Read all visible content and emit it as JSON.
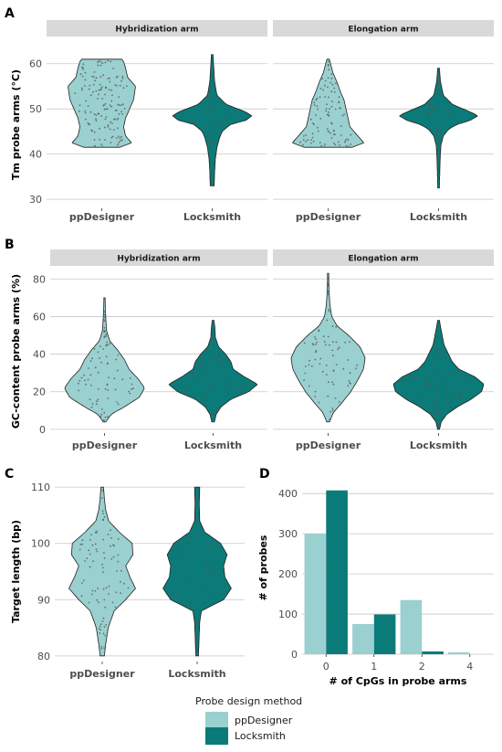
{
  "colors": {
    "ppDesigner": "#9ad0cf",
    "Locksmith": "#0a7b78",
    "strip_bg": "#d9d9d9",
    "grid": "#c7c7c7",
    "dots": "#555555"
  },
  "legend": {
    "title": "Probe design method",
    "items": [
      "ppDesigner",
      "Locksmith"
    ]
  },
  "chart_data": [
    {
      "panel": "A",
      "type": "violin",
      "ylabel": "Tm probe arms (°C)",
      "ylim": [
        28,
        65
      ],
      "yticks": [
        30,
        40,
        50,
        60
      ],
      "facets": [
        {
          "strip": "Hybridization arm",
          "categories": [
            "ppDesigner",
            "Locksmith"
          ],
          "series": [
            {
              "name": "ppDesigner",
              "y_range": [
                41.5,
                61
              ],
              "median": 50,
              "profile": [
                [
                  41.5,
                  0.45
                ],
                [
                  42.5,
                  0.75
                ],
                [
                  44,
                  0.6
                ],
                [
                  46,
                  0.55
                ],
                [
                  48,
                  0.6
                ],
                [
                  50,
                  0.7
                ],
                [
                  52,
                  0.8
                ],
                [
                  55,
                  0.85
                ],
                [
                  57,
                  0.65
                ],
                [
                  59,
                  0.6
                ],
                [
                  60.5,
                  0.55
                ],
                [
                  61,
                  0.5
                ]
              ]
            },
            {
              "name": "Locksmith",
              "y_range": [
                33,
                62
              ],
              "median": 48.5,
              "profile": [
                [
                  33,
                  0.05
                ],
                [
                  36,
                  0.06
                ],
                [
                  39,
                  0.08
                ],
                [
                  41.5,
                  0.12
                ],
                [
                  43.5,
                  0.18
                ],
                [
                  45,
                  0.25
                ],
                [
                  46.5,
                  0.45
                ],
                [
                  47.5,
                  0.85
                ],
                [
                  48.5,
                  1.0
                ],
                [
                  49.5,
                  0.8
                ],
                [
                  51,
                  0.35
                ],
                [
                  53,
                  0.12
                ],
                [
                  56,
                  0.06
                ],
                [
                  59,
                  0.04
                ],
                [
                  62,
                  0.02
                ]
              ]
            }
          ]
        },
        {
          "strip": "Elongation arm",
          "categories": [
            "ppDesigner",
            "Locksmith"
          ],
          "series": [
            {
              "name": "ppDesigner",
              "y_range": [
                41.5,
                61
              ],
              "median": 46,
              "profile": [
                [
                  41.5,
                  0.6
                ],
                [
                  42.5,
                  0.9
                ],
                [
                  44,
                  0.75
                ],
                [
                  46,
                  0.55
                ],
                [
                  48,
                  0.5
                ],
                [
                  50,
                  0.45
                ],
                [
                  52,
                  0.4
                ],
                [
                  54,
                  0.3
                ],
                [
                  56,
                  0.22
                ],
                [
                  58,
                  0.12
                ],
                [
                  60,
                  0.06
                ],
                [
                  61,
                  0.03
                ]
              ]
            },
            {
              "name": "Locksmith",
              "y_range": [
                32.5,
                59
              ],
              "median": 48.5,
              "profile": [
                [
                  32.5,
                  0.02
                ],
                [
                  36,
                  0.03
                ],
                [
                  39,
                  0.04
                ],
                [
                  42,
                  0.06
                ],
                [
                  44,
                  0.12
                ],
                [
                  45.5,
                  0.25
                ],
                [
                  46.5,
                  0.45
                ],
                [
                  47.5,
                  0.8
                ],
                [
                  48.5,
                  1.0
                ],
                [
                  49.5,
                  0.75
                ],
                [
                  51,
                  0.35
                ],
                [
                  53,
                  0.12
                ],
                [
                  56,
                  0.05
                ],
                [
                  59,
                  0.02
                ]
              ]
            }
          ]
        }
      ]
    },
    {
      "panel": "B",
      "type": "violin",
      "ylabel": "GC-content probe arms (%)",
      "ylim": [
        -2,
        85
      ],
      "yticks": [
        0,
        20,
        40,
        60,
        80
      ],
      "facets": [
        {
          "strip": "Hybridization arm",
          "categories": [
            "ppDesigner",
            "Locksmith"
          ],
          "series": [
            {
              "name": "ppDesigner",
              "y_range": [
                4,
                70
              ],
              "median": 24,
              "profile": [
                [
                  4,
                  0.03
                ],
                [
                  8,
                  0.15
                ],
                [
                  12,
                  0.45
                ],
                [
                  17,
                  0.78
                ],
                [
                  22,
                  0.9
                ],
                [
                  27,
                  0.75
                ],
                [
                  32,
                  0.55
                ],
                [
                  37,
                  0.45
                ],
                [
                  42,
                  0.3
                ],
                [
                  47,
                  0.12
                ],
                [
                  52,
                  0.05
                ],
                [
                  58,
                  0.03
                ],
                [
                  64,
                  0.02
                ],
                [
                  70,
                  0.01
                ]
              ]
            },
            {
              "name": "Locksmith",
              "y_range": [
                4,
                58
              ],
              "median": 24,
              "profile": [
                [
                  4,
                  0.03
                ],
                [
                  8,
                  0.07
                ],
                [
                  12,
                  0.18
                ],
                [
                  16,
                  0.4
                ],
                [
                  20,
                  0.8
                ],
                [
                  24,
                  1.0
                ],
                [
                  28,
                  0.7
                ],
                [
                  32,
                  0.45
                ],
                [
                  36,
                  0.4
                ],
                [
                  40,
                  0.28
                ],
                [
                  44,
                  0.12
                ],
                [
                  49,
                  0.05
                ],
                [
                  54,
                  0.04
                ],
                [
                  58,
                  0.02
                ]
              ]
            }
          ]
        },
        {
          "strip": "Elongation arm",
          "categories": [
            "ppDesigner",
            "Locksmith"
          ],
          "series": [
            {
              "name": "ppDesigner",
              "y_range": [
                4,
                83
              ],
              "median": 33,
              "profile": [
                [
                  4,
                  0.03
                ],
                [
                  9,
                  0.12
                ],
                [
                  14,
                  0.3
                ],
                [
                  20,
                  0.5
                ],
                [
                  26,
                  0.65
                ],
                [
                  32,
                  0.78
                ],
                [
                  38,
                  0.82
                ],
                [
                  44,
                  0.7
                ],
                [
                  50,
                  0.45
                ],
                [
                  55,
                  0.2
                ],
                [
                  60,
                  0.08
                ],
                [
                  66,
                  0.04
                ],
                [
                  74,
                  0.02
                ],
                [
                  83,
                  0.01
                ]
              ]
            },
            {
              "name": "Locksmith",
              "y_range": [
                0,
                58
              ],
              "median": 23,
              "profile": [
                [
                  0,
                  0.02
                ],
                [
                  4,
                  0.06
                ],
                [
                  8,
                  0.18
                ],
                [
                  12,
                  0.42
                ],
                [
                  16,
                  0.72
                ],
                [
                  20,
                  0.95
                ],
                [
                  24,
                  1.0
                ],
                [
                  28,
                  0.8
                ],
                [
                  32,
                  0.45
                ],
                [
                  36,
                  0.3
                ],
                [
                  40,
                  0.22
                ],
                [
                  45,
                  0.12
                ],
                [
                  50,
                  0.08
                ],
                [
                  55,
                  0.04
                ],
                [
                  58,
                  0.02
                ]
              ]
            }
          ]
        }
      ]
    },
    {
      "panel": "C",
      "type": "violin",
      "ylabel": "Target length (bp)",
      "ylim": [
        79,
        111
      ],
      "yticks": [
        80,
        90,
        100,
        110
      ],
      "facets": [
        {
          "strip": "",
          "categories": [
            "ppDesigner",
            "Locksmith"
          ],
          "series": [
            {
              "name": "ppDesigner",
              "y_range": [
                80,
                110
              ],
              "median": 94,
              "profile": [
                [
                  80,
                  0.05
                ],
                [
                  82,
                  0.08
                ],
                [
                  85,
                  0.14
                ],
                [
                  88,
                  0.28
                ],
                [
                  90,
                  0.55
                ],
                [
                  92,
                  0.78
                ],
                [
                  94,
                  0.65
                ],
                [
                  96,
                  0.55
                ],
                [
                  98,
                  0.72
                ],
                [
                  100,
                  0.7
                ],
                [
                  102,
                  0.4
                ],
                [
                  104,
                  0.15
                ],
                [
                  106,
                  0.08
                ],
                [
                  108,
                  0.05
                ],
                [
                  110,
                  0.03
                ]
              ]
            },
            {
              "name": "Locksmith",
              "y_range": [
                80,
                110
              ],
              "median": 93,
              "profile": [
                [
                  80,
                  0.03
                ],
                [
                  82,
                  0.04
                ],
                [
                  84,
                  0.05
                ],
                [
                  86,
                  0.06
                ],
                [
                  88,
                  0.1
                ],
                [
                  90,
                  0.62
                ],
                [
                  92,
                  0.8
                ],
                [
                  94,
                  0.65
                ],
                [
                  96,
                  0.62
                ],
                [
                  98,
                  0.7
                ],
                [
                  100,
                  0.55
                ],
                [
                  102,
                  0.18
                ],
                [
                  104,
                  0.06
                ],
                [
                  107,
                  0.05
                ],
                [
                  110,
                  0.06
                ]
              ]
            }
          ]
        }
      ]
    },
    {
      "panel": "D",
      "type": "bar",
      "xlabel": "# of CpGs in probe arms",
      "ylabel": "# of probes",
      "categories": [
        "0",
        "1",
        "2",
        "4"
      ],
      "ylim": [
        0,
        430
      ],
      "yticks": [
        0,
        100,
        200,
        300,
        400
      ],
      "series": [
        {
          "name": "ppDesigner",
          "values": [
            300,
            75,
            135,
            5
          ]
        },
        {
          "name": "Locksmith",
          "values": [
            408,
            99,
            7,
            0
          ]
        }
      ]
    }
  ]
}
